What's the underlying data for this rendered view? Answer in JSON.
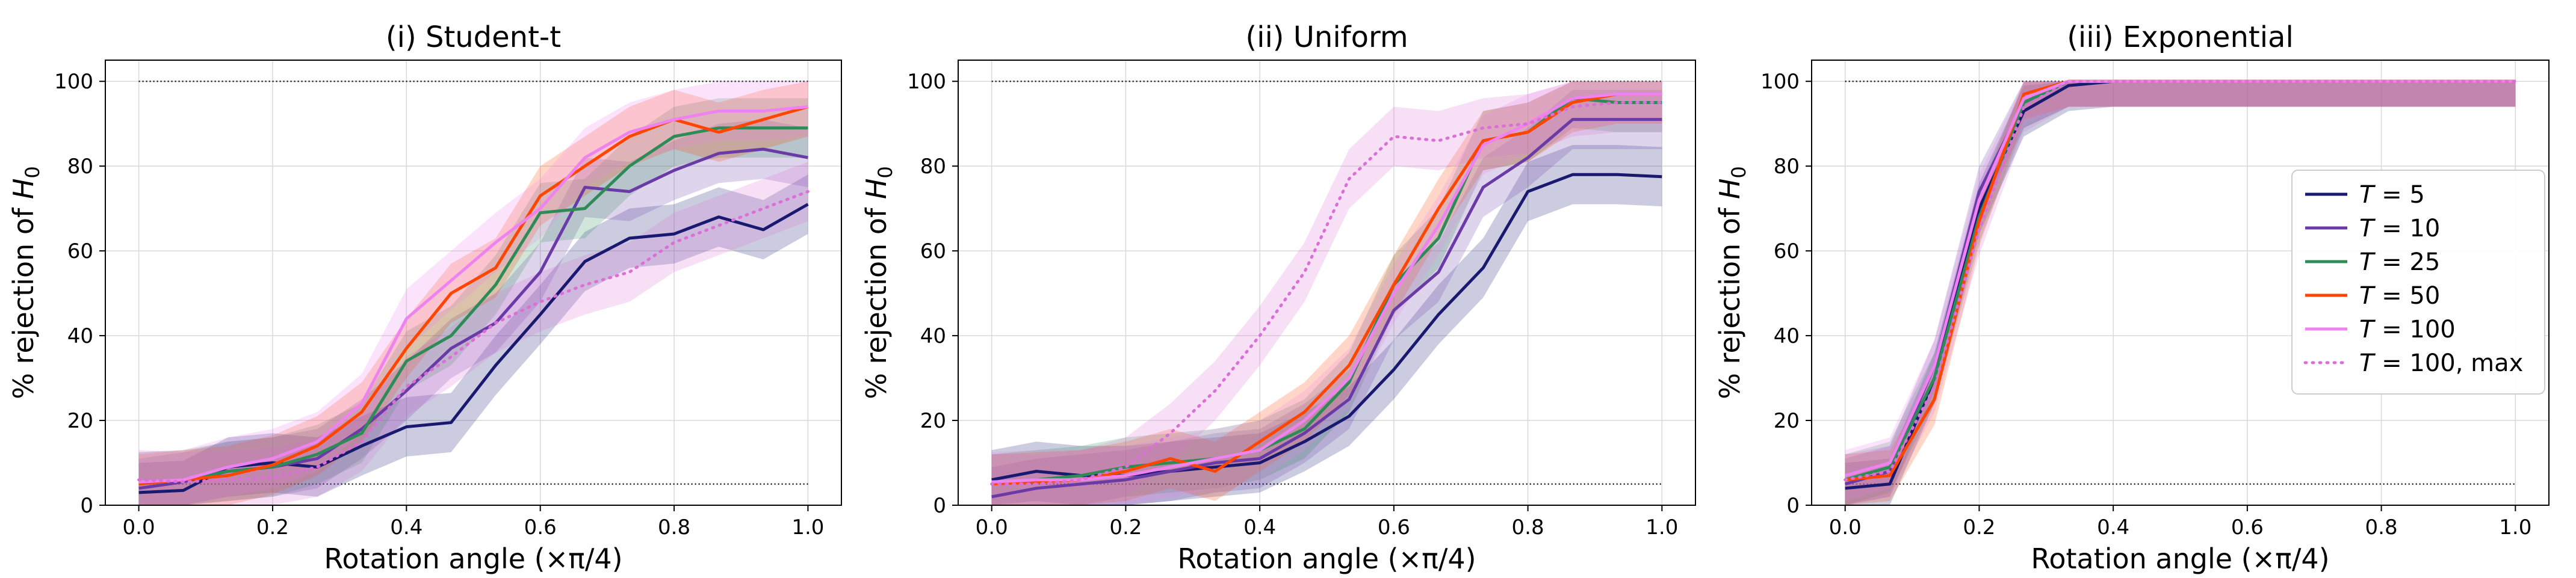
{
  "chart_data": [
    {
      "type": "line",
      "title": "(i) Student-t",
      "xlabel": "Rotation angle (×π/4)",
      "ylabel_prefix": "% rejection of ",
      "ylabel_symbol": "H",
      "ylabel_subscript": "0",
      "xlim": [
        -0.05,
        1.05
      ],
      "ylim": [
        0,
        105
      ],
      "xticks": [
        0.0,
        0.2,
        0.4,
        0.6,
        0.8,
        1.0
      ],
      "xtick_labels": [
        "0.0",
        "0.2",
        "0.4",
        "0.6",
        "0.8",
        "1.0"
      ],
      "yticks": [
        0,
        20,
        40,
        60,
        80,
        100
      ],
      "ytick_labels": [
        "0",
        "20",
        "40",
        "60",
        "80",
        "100"
      ],
      "reference_lines": [
        100,
        5
      ],
      "grid": true,
      "x": [
        0.0,
        0.0667,
        0.1333,
        0.2,
        0.2667,
        0.3333,
        0.4,
        0.4667,
        0.5333,
        0.6,
        0.6667,
        0.7333,
        0.8,
        0.8667,
        0.9333,
        1.0
      ],
      "band_halfwidth": 7,
      "series": [
        {
          "name": "T = 5",
          "color": "#191970",
          "style": "solid",
          "values": [
            3,
            3.5,
            9,
            10,
            9,
            14,
            18.5,
            19.5,
            33,
            45,
            57.5,
            63,
            64,
            68,
            65,
            71
          ]
        },
        {
          "name": "T = 10",
          "color": "#6a3aa7",
          "style": "solid",
          "values": [
            4,
            5.5,
            8,
            9,
            11,
            18,
            27,
            37,
            43,
            55,
            75,
            74,
            79,
            83,
            84,
            82
          ]
        },
        {
          "name": "T = 25",
          "color": "#2e8b57",
          "style": "solid",
          "values": [
            5.5,
            6,
            8,
            9,
            12,
            17,
            34,
            40,
            52,
            69,
            70,
            80,
            87,
            89,
            89,
            89
          ]
        },
        {
          "name": "T = 50",
          "color": "#ff4500",
          "style": "solid",
          "values": [
            5,
            6,
            7,
            9.5,
            14,
            22,
            37,
            50,
            56,
            73,
            80,
            87,
            91,
            88,
            91,
            94
          ]
        },
        {
          "name": "T = 100",
          "color": "#ee82ee",
          "style": "solid",
          "values": [
            5.5,
            6,
            9,
            11,
            15,
            24,
            44,
            53,
            62,
            70,
            82,
            88,
            91,
            93,
            93,
            94
          ]
        },
        {
          "name": "T = 100, max",
          "color": "#da70d6",
          "style": "dotted",
          "values": [
            6,
            5.5,
            6,
            6.5,
            9,
            15,
            28,
            35,
            43,
            48,
            52,
            55,
            62,
            66,
            70,
            74
          ]
        }
      ]
    },
    {
      "type": "line",
      "title": "(ii) Uniform",
      "xlabel": "Rotation angle (×π/4)",
      "ylabel_prefix": "% rejection of ",
      "ylabel_symbol": "H",
      "ylabel_subscript": "0",
      "xlim": [
        -0.05,
        1.05
      ],
      "ylim": [
        0,
        105
      ],
      "xticks": [
        0.0,
        0.2,
        0.4,
        0.6,
        0.8,
        1.0
      ],
      "xtick_labels": [
        "0.0",
        "0.2",
        "0.4",
        "0.6",
        "0.8",
        "1.0"
      ],
      "yticks": [
        0,
        20,
        40,
        60,
        80,
        100
      ],
      "ytick_labels": [
        "0",
        "20",
        "40",
        "60",
        "80",
        "100"
      ],
      "reference_lines": [
        100,
        5
      ],
      "grid": true,
      "x": [
        0.0,
        0.0667,
        0.1333,
        0.2,
        0.2667,
        0.3333,
        0.4,
        0.4667,
        0.5333,
        0.6,
        0.6667,
        0.7333,
        0.8,
        0.8667,
        0.9333,
        1.0
      ],
      "band_halfwidth": 7,
      "series": [
        {
          "name": "T = 5",
          "color": "#191970",
          "style": "solid",
          "values": [
            6,
            8,
            7,
            7,
            8,
            9,
            10,
            15,
            21,
            32,
            45,
            56,
            74,
            78,
            78,
            77.5
          ]
        },
        {
          "name": "T = 10",
          "color": "#6a3aa7",
          "style": "solid",
          "values": [
            2,
            4,
            5,
            6,
            8,
            10,
            11,
            17,
            25,
            46,
            55,
            75,
            82,
            91,
            91,
            91
          ]
        },
        {
          "name": "T = 25",
          "color": "#2e8b57",
          "style": "solid",
          "values": [
            5,
            6,
            7,
            9,
            10,
            11,
            13,
            18,
            29,
            52,
            63,
            86,
            88,
            96,
            95,
            95
          ]
        },
        {
          "name": "T = 50",
          "color": "#ff4500",
          "style": "solid",
          "values": [
            5,
            5.5,
            6,
            8,
            11,
            8,
            15,
            22,
            33,
            52,
            70,
            86,
            88,
            95,
            97,
            97
          ]
        },
        {
          "name": "T = 100",
          "color": "#ee82ee",
          "style": "solid",
          "values": [
            5.5,
            6,
            6,
            7,
            9,
            11,
            13,
            20,
            30,
            50,
            66,
            85,
            90,
            96,
            97,
            97
          ]
        },
        {
          "name": "T = 100, max",
          "color": "#da70d6",
          "style": "dotted",
          "values": [
            5,
            5,
            6,
            9,
            17,
            27,
            40,
            55,
            77,
            87,
            86,
            89,
            90,
            94,
            95,
            95
          ]
        }
      ]
    },
    {
      "type": "line",
      "title": "(iii) Exponential",
      "xlabel": "Rotation angle (×π/4)",
      "ylabel_prefix": "% rejection of ",
      "ylabel_symbol": "H",
      "ylabel_subscript": "0",
      "xlim": [
        -0.05,
        1.05
      ],
      "ylim": [
        0,
        105
      ],
      "xticks": [
        0.0,
        0.2,
        0.4,
        0.6,
        0.8,
        1.0
      ],
      "xtick_labels": [
        "0.0",
        "0.2",
        "0.4",
        "0.6",
        "0.8",
        "1.0"
      ],
      "yticks": [
        0,
        20,
        40,
        60,
        80,
        100
      ],
      "ytick_labels": [
        "0",
        "20",
        "40",
        "60",
        "80",
        "100"
      ],
      "reference_lines": [
        100,
        5
      ],
      "grid": true,
      "x": [
        0.0,
        0.0667,
        0.1333,
        0.2,
        0.2667,
        0.3333,
        0.4,
        0.4667,
        0.5333,
        0.6,
        0.6667,
        0.7333,
        0.8,
        0.8667,
        0.9333,
        1.0
      ],
      "band_halfwidth": 6,
      "series": [
        {
          "name": "T = 5",
          "color": "#191970",
          "style": "solid",
          "values": [
            4,
            5,
            30,
            70,
            93,
            99,
            100,
            100,
            100,
            100,
            100,
            100,
            100,
            100,
            100,
            100
          ]
        },
        {
          "name": "T = 10",
          "color": "#6a3aa7",
          "style": "solid",
          "values": [
            5,
            8,
            33,
            74,
            95,
            100,
            100,
            100,
            100,
            100,
            100,
            100,
            100,
            100,
            100,
            100
          ]
        },
        {
          "name": "T = 25",
          "color": "#2e8b57",
          "style": "solid",
          "values": [
            6,
            9,
            30,
            68,
            95,
            100,
            100,
            100,
            100,
            100,
            100,
            100,
            100,
            100,
            100,
            100
          ]
        },
        {
          "name": "T = 50",
          "color": "#ff4500",
          "style": "solid",
          "values": [
            6,
            7,
            25,
            67,
            97,
            100,
            100,
            100,
            100,
            100,
            100,
            100,
            100,
            100,
            100,
            100
          ]
        },
        {
          "name": "T = 100",
          "color": "#ee82ee",
          "style": "solid",
          "values": [
            7,
            10,
            33,
            72,
            96,
            100,
            100,
            100,
            100,
            100,
            100,
            100,
            100,
            100,
            100,
            100
          ]
        },
        {
          "name": "T = 100, max",
          "color": "#da70d6",
          "style": "dotted",
          "values": [
            6,
            8,
            28,
            65,
            94,
            100,
            100,
            100,
            100,
            100,
            100,
            100,
            100,
            100,
            100,
            100
          ]
        }
      ]
    }
  ],
  "legend": {
    "panel": 2,
    "placement": "center-right",
    "entries": [
      {
        "prefix": "T",
        "suffix": " = 5",
        "color": "#191970",
        "style": "solid"
      },
      {
        "prefix": "T",
        "suffix": " = 10",
        "color": "#6a3aa7",
        "style": "solid"
      },
      {
        "prefix": "T",
        "suffix": " = 25",
        "color": "#2e8b57",
        "style": "solid"
      },
      {
        "prefix": "T",
        "suffix": " = 50",
        "color": "#ff4500",
        "style": "solid"
      },
      {
        "prefix": "T",
        "suffix": " = 100",
        "color": "#ee82ee",
        "style": "solid"
      },
      {
        "prefix": "T",
        "suffix": " = 100, max",
        "color": "#da70d6",
        "style": "dotted"
      }
    ]
  }
}
